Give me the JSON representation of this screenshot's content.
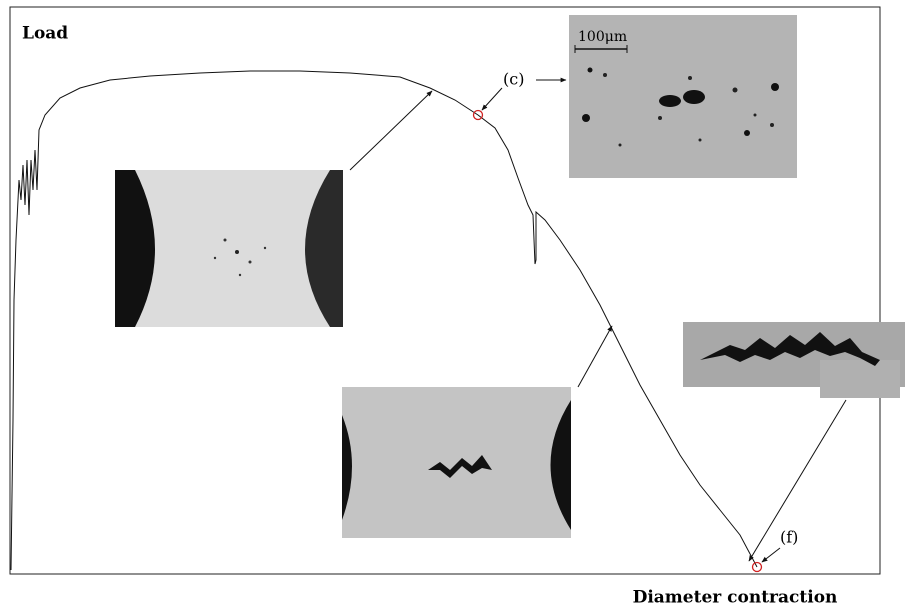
{
  "axes": {
    "y_label": "Load",
    "x_label": "Diameter contraction"
  },
  "annotations": {
    "point_c": "(c)",
    "point_f": "(f)",
    "scale_bar": "100μm"
  }
}
